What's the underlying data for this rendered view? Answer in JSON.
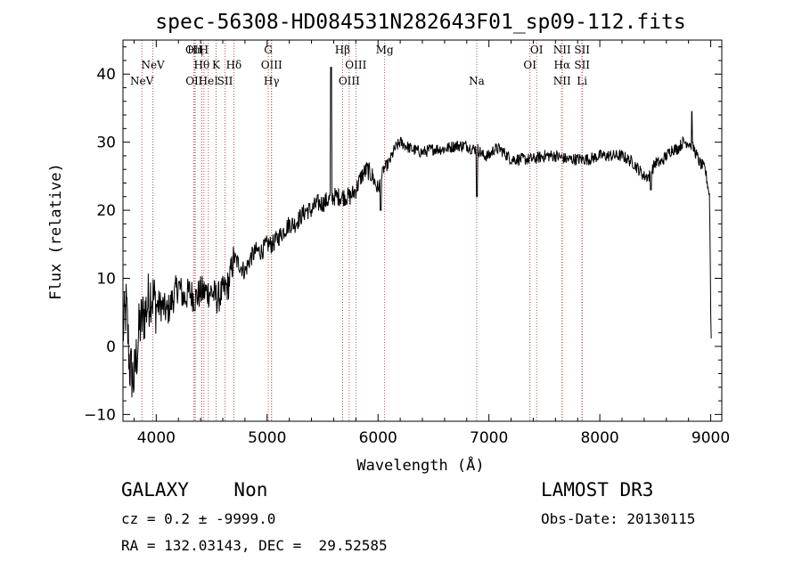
{
  "chart_data": {
    "type": "line",
    "title": "spec-56308-HD084531N282643F01_sp09-112.fits",
    "xlabel": "Wavelength (Å)",
    "ylabel": "Flux (relative)",
    "xlim": [
      3700,
      9100
    ],
    "ylim": [
      -11,
      45
    ],
    "xticks": [
      4000,
      5000,
      6000,
      7000,
      8000,
      9000
    ],
    "yticks": [
      -10,
      0,
      10,
      20,
      30,
      40
    ],
    "grid": false,
    "anchors": [
      [
        3700,
        2
      ],
      [
        3730,
        6
      ],
      [
        3760,
        -3
      ],
      [
        3800,
        -5
      ],
      [
        3850,
        3
      ],
      [
        3900,
        5
      ],
      [
        3950,
        8
      ],
      [
        4000,
        6
      ],
      [
        4050,
        6
      ],
      [
        4100,
        5
      ],
      [
        4150,
        7
      ],
      [
        4200,
        9
      ],
      [
        4250,
        7
      ],
      [
        4300,
        8
      ],
      [
        4350,
        7
      ],
      [
        4400,
        8
      ],
      [
        4450,
        8
      ],
      [
        4500,
        8
      ],
      [
        4550,
        7
      ],
      [
        4600,
        8
      ],
      [
        4650,
        9
      ],
      [
        4700,
        13
      ],
      [
        4750,
        12
      ],
      [
        4800,
        11
      ],
      [
        4850,
        13
      ],
      [
        4900,
        14
      ],
      [
        4950,
        14
      ],
      [
        5000,
        15
      ],
      [
        5050,
        15
      ],
      [
        5100,
        16
      ],
      [
        5150,
        17
      ],
      [
        5200,
        18
      ],
      [
        5250,
        18
      ],
      [
        5300,
        19
      ],
      [
        5350,
        20
      ],
      [
        5400,
        20
      ],
      [
        5450,
        21
      ],
      [
        5500,
        21
      ],
      [
        5600,
        22
      ],
      [
        5650,
        22
      ],
      [
        5700,
        22
      ],
      [
        5750,
        22
      ],
      [
        5800,
        23
      ],
      [
        5850,
        25
      ],
      [
        5900,
        26
      ],
      [
        5950,
        25
      ],
      [
        6000,
        23
      ],
      [
        6050,
        26
      ],
      [
        6100,
        27
      ],
      [
        6150,
        29
      ],
      [
        6200,
        30
      ],
      [
        6300,
        29
      ],
      [
        6400,
        28.5
      ],
      [
        6500,
        29
      ],
      [
        6600,
        29
      ],
      [
        6700,
        29.5
      ],
      [
        6800,
        29.5
      ],
      [
        6850,
        29
      ],
      [
        6900,
        29
      ],
      [
        6950,
        28
      ],
      [
        7000,
        28
      ],
      [
        7050,
        29
      ],
      [
        7100,
        29
      ],
      [
        7200,
        27.5
      ],
      [
        7300,
        27.5
      ],
      [
        7400,
        27.5
      ],
      [
        7500,
        28
      ],
      [
        7600,
        28
      ],
      [
        7700,
        27.5
      ],
      [
        7800,
        27.5
      ],
      [
        7900,
        27.5
      ],
      [
        8000,
        28
      ],
      [
        8100,
        28
      ],
      [
        8200,
        28
      ],
      [
        8300,
        27
      ],
      [
        8400,
        25
      ],
      [
        8450,
        25
      ],
      [
        8500,
        27
      ],
      [
        8550,
        27
      ],
      [
        8600,
        28
      ],
      [
        8650,
        29
      ],
      [
        8700,
        29
      ],
      [
        8750,
        30
      ],
      [
        8800,
        30
      ],
      [
        8850,
        29
      ],
      [
        8900,
        27
      ],
      [
        8950,
        26
      ],
      [
        8990,
        22
      ],
      [
        9000,
        5
      ],
      [
        9005,
        0
      ]
    ],
    "spikes": [
      {
        "x": 5577,
        "y": 41
      },
      {
        "x": 6892,
        "y": 22
      },
      {
        "x": 8830,
        "y": 34.5
      },
      {
        "x": 8460,
        "y": 23
      },
      {
        "x": 6023,
        "y": 20
      }
    ],
    "lines": [
      {
        "x": 3870,
        "label": "NeV",
        "row": 3
      },
      {
        "x": 3970,
        "label": "NeV",
        "row": 2
      },
      {
        "x": 4340,
        "label": "OII",
        "row": 1
      },
      {
        "x": 4342,
        "label": "OII",
        "row": 3
      },
      {
        "x": 4352,
        "label": "Hη",
        "row": 1
      },
      {
        "x": 4410,
        "label": "Hθ",
        "row": 2
      },
      {
        "x": 4430,
        "label": "H",
        "row": 1
      },
      {
        "x": 4470,
        "label": "HeI",
        "row": 3
      },
      {
        "x": 4540,
        "label": "K",
        "row": 2
      },
      {
        "x": 4620,
        "label": "SII",
        "row": 3
      },
      {
        "x": 4700,
        "label": "Hδ",
        "row": 2
      },
      {
        "x": 5010,
        "label": "G",
        "row": 1
      },
      {
        "x": 5040,
        "label": "OIII",
        "row": 2
      },
      {
        "x": 5040,
        "label": "Hγ",
        "row": 3
      },
      {
        "x": 5680,
        "label": "Hβ",
        "row": 1
      },
      {
        "x": 5740,
        "label": "OIII",
        "row": 3
      },
      {
        "x": 5800,
        "label": "OIII",
        "row": 2
      },
      {
        "x": 6060,
        "label": "Mg",
        "row": 1
      },
      {
        "x": 6890,
        "label": "Na",
        "row": 3
      },
      {
        "x": 7370,
        "label": "OI",
        "row": 2
      },
      {
        "x": 7430,
        "label": "OI",
        "row": 1
      },
      {
        "x": 7660,
        "label": "NII",
        "row": 1
      },
      {
        "x": 7660,
        "label": "Hα",
        "row": 2
      },
      {
        "x": 7660,
        "label": "NII",
        "row": 3
      },
      {
        "x": 7840,
        "label": "SII",
        "row": 1
      },
      {
        "x": 7840,
        "label": "SII",
        "row": 2
      },
      {
        "x": 7840,
        "label": "Li",
        "row": 3
      }
    ]
  },
  "info": {
    "class": "GALAXY    Non",
    "survey": "LAMOST DR3",
    "cz": "cz = 0.2 ± -9999.0",
    "obsdate": "Obs-Date: 20130115",
    "radec": "RA = 132.03143, DEC =  29.52585"
  }
}
